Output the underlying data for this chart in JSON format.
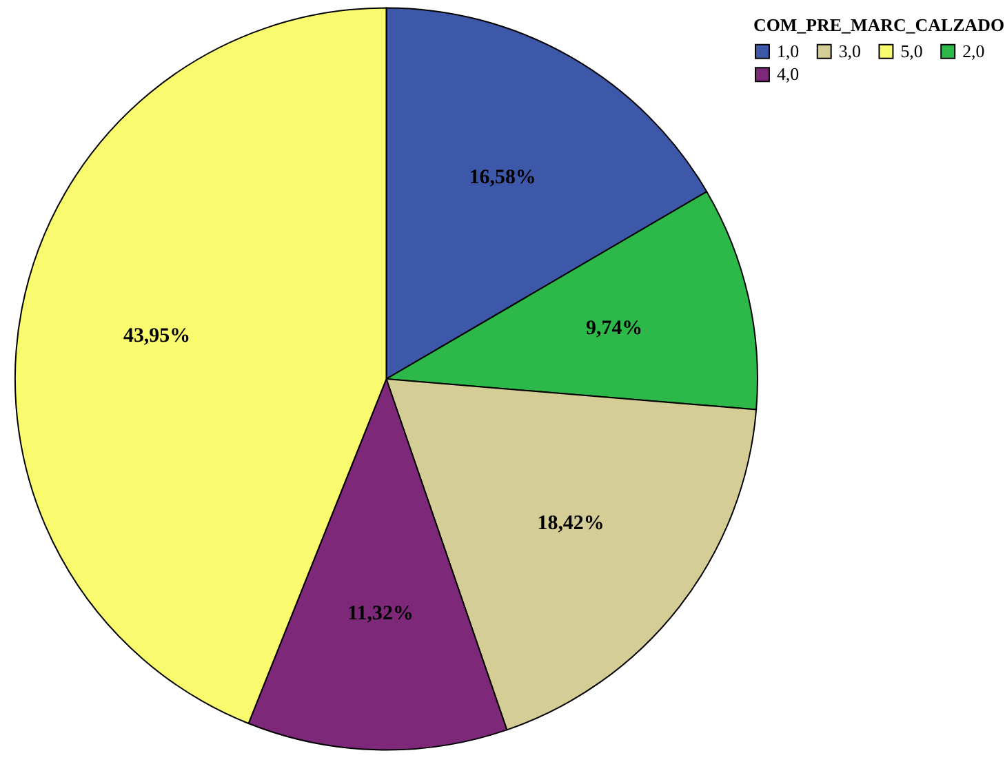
{
  "chart_data": {
    "type": "pie",
    "legend_title": "COM_PRE_MARC_CALZADO",
    "legend": "top right",
    "categories": [
      "1,0",
      "2,0",
      "3,0",
      "4,0",
      "5,0"
    ],
    "values": [
      16.58,
      9.74,
      18.42,
      11.32,
      43.95
    ],
    "colors": [
      "#3d58a8",
      "#2db84a",
      "#d4cd96",
      "#7d2878",
      "#fafa6e"
    ],
    "value_labels": [
      "16,58%",
      "9,74%",
      "18,42%",
      "11,32%",
      "43,95%"
    ]
  }
}
